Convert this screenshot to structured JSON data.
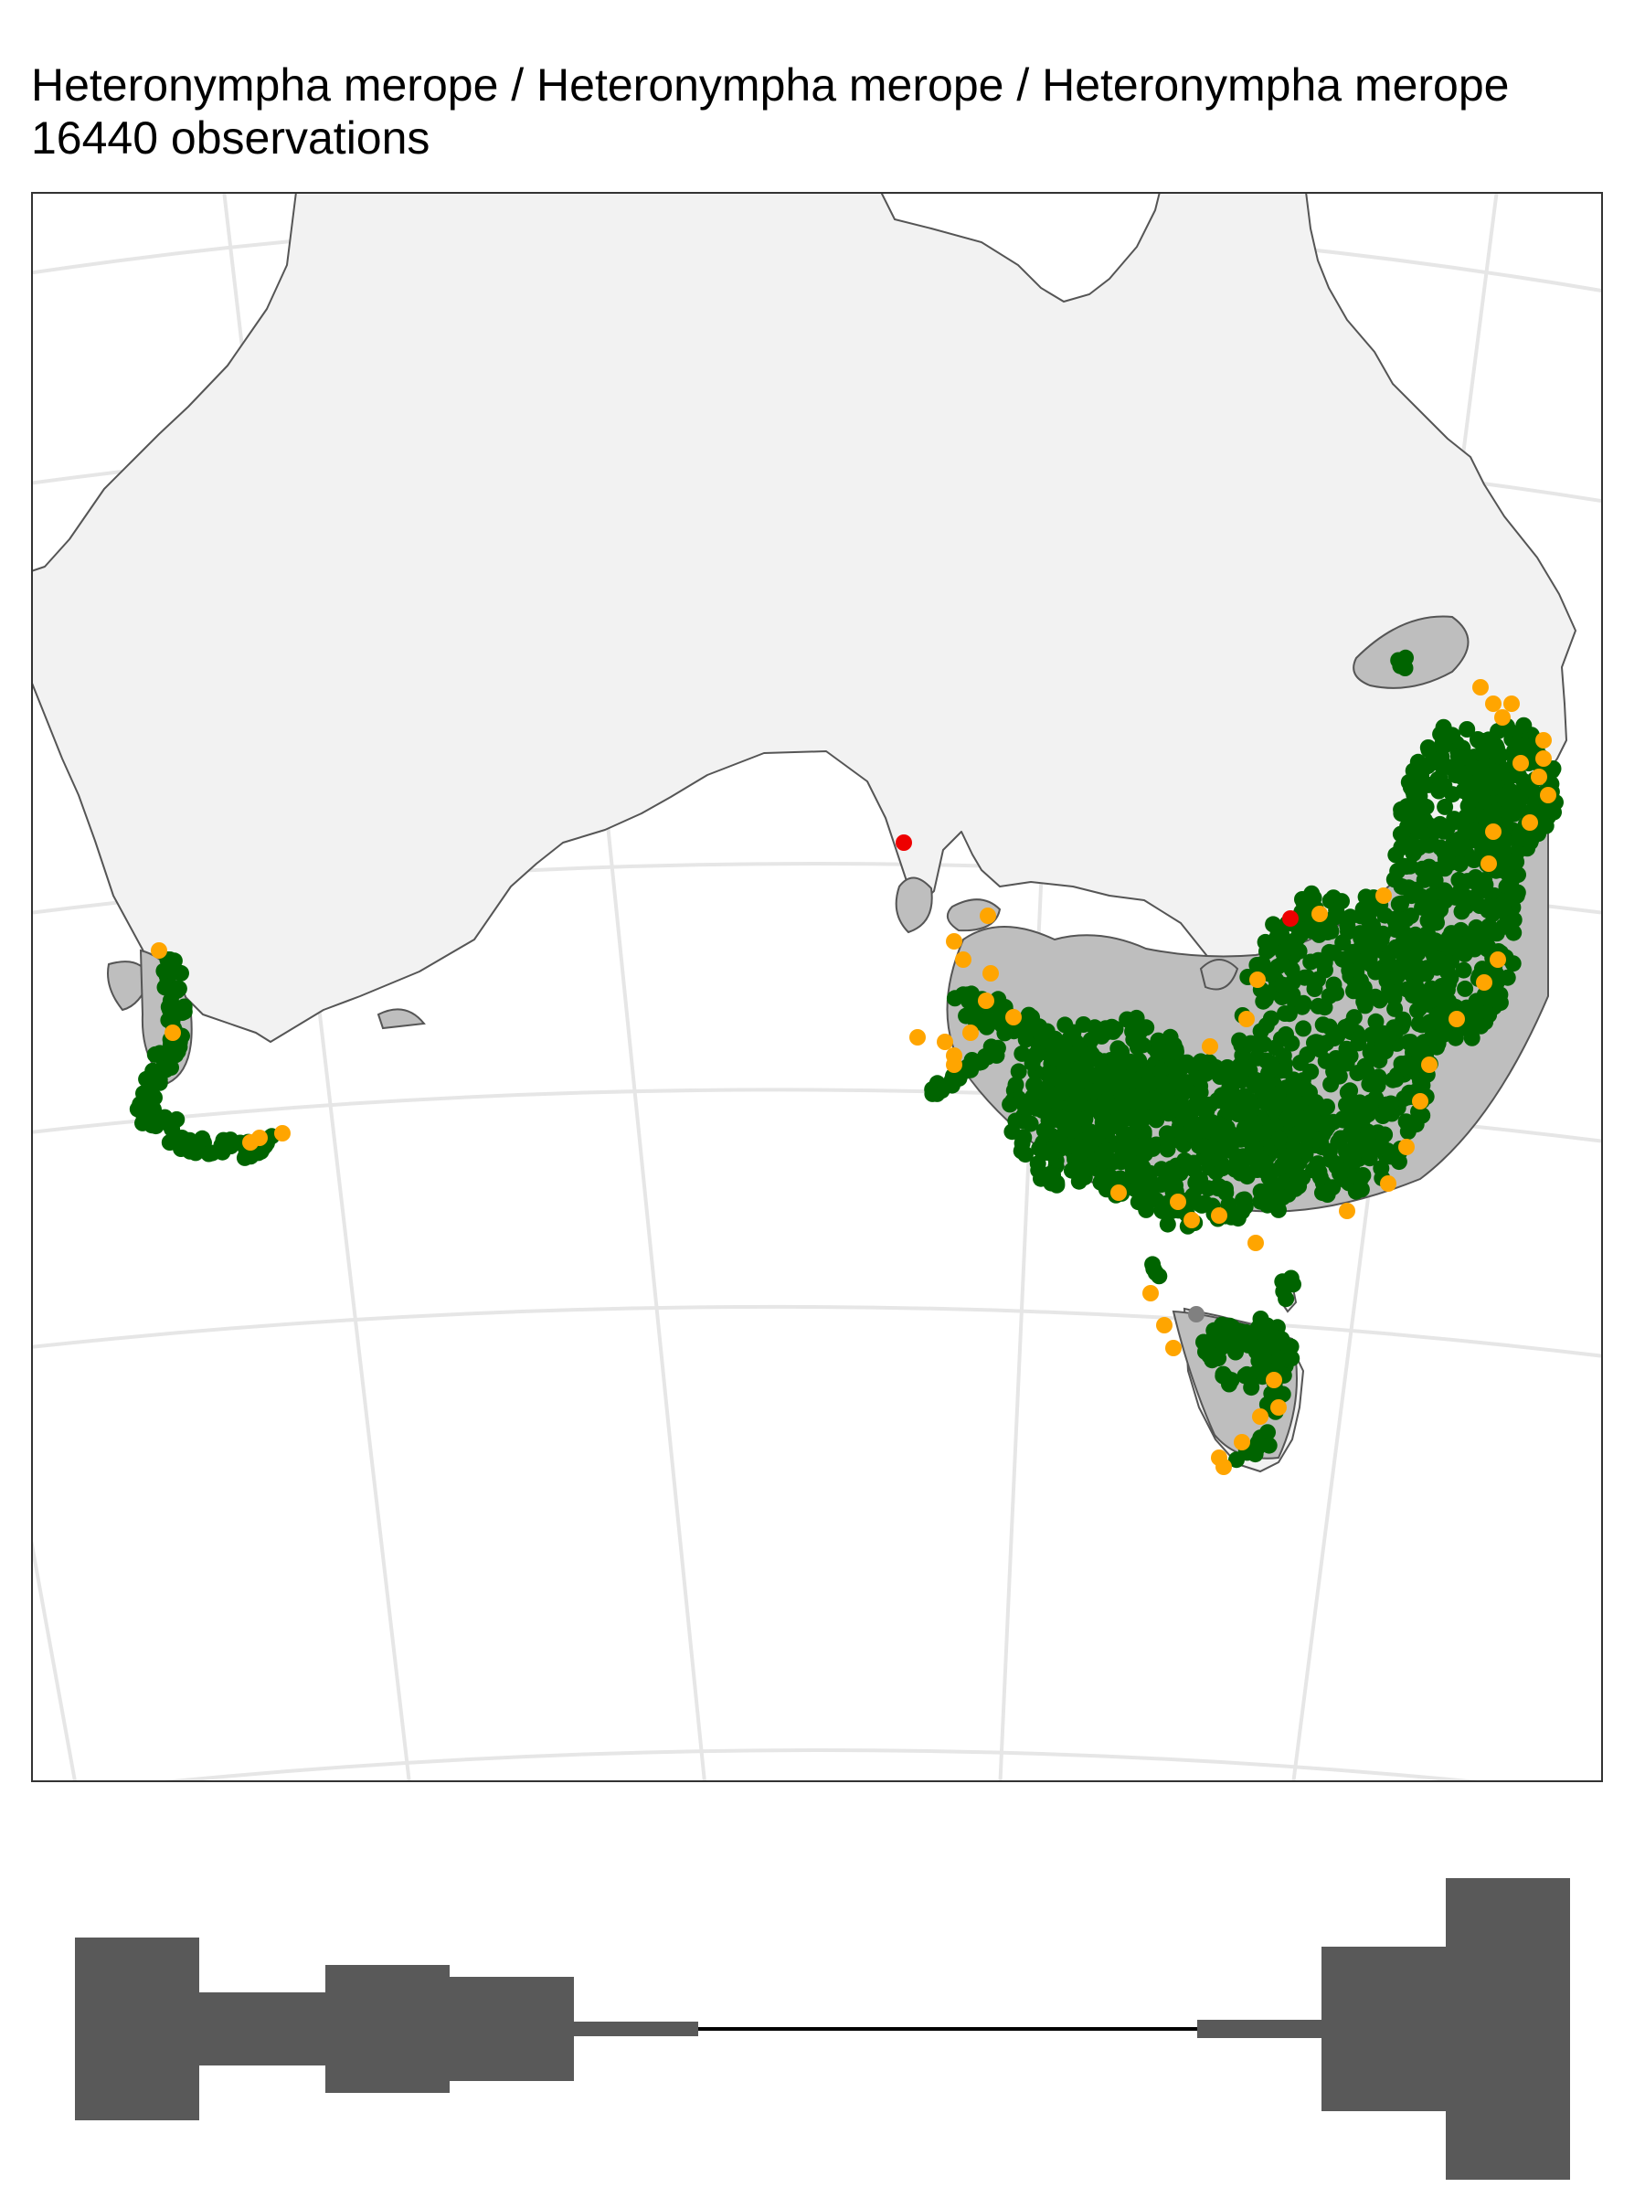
{
  "header": {
    "title": "Heteronympha merope / Heteronympha merope / Heteronympha merope",
    "subtitle": "16440 observations"
  },
  "map": {
    "region": "Australia",
    "graticule": "on",
    "land_color": "#f2f2f2",
    "coastline_color": "#555555",
    "range_polygon_color": "#bebebe",
    "point_categories": [
      {
        "id": "green",
        "color": "#006400"
      },
      {
        "id": "orange",
        "color": "#ffa500"
      },
      {
        "id": "red",
        "color": "#ee0000"
      },
      {
        "id": "grey",
        "color": "#808080"
      }
    ]
  },
  "timeline": {
    "bar_color": "#595959",
    "axis_line_color": "#000000"
  }
}
